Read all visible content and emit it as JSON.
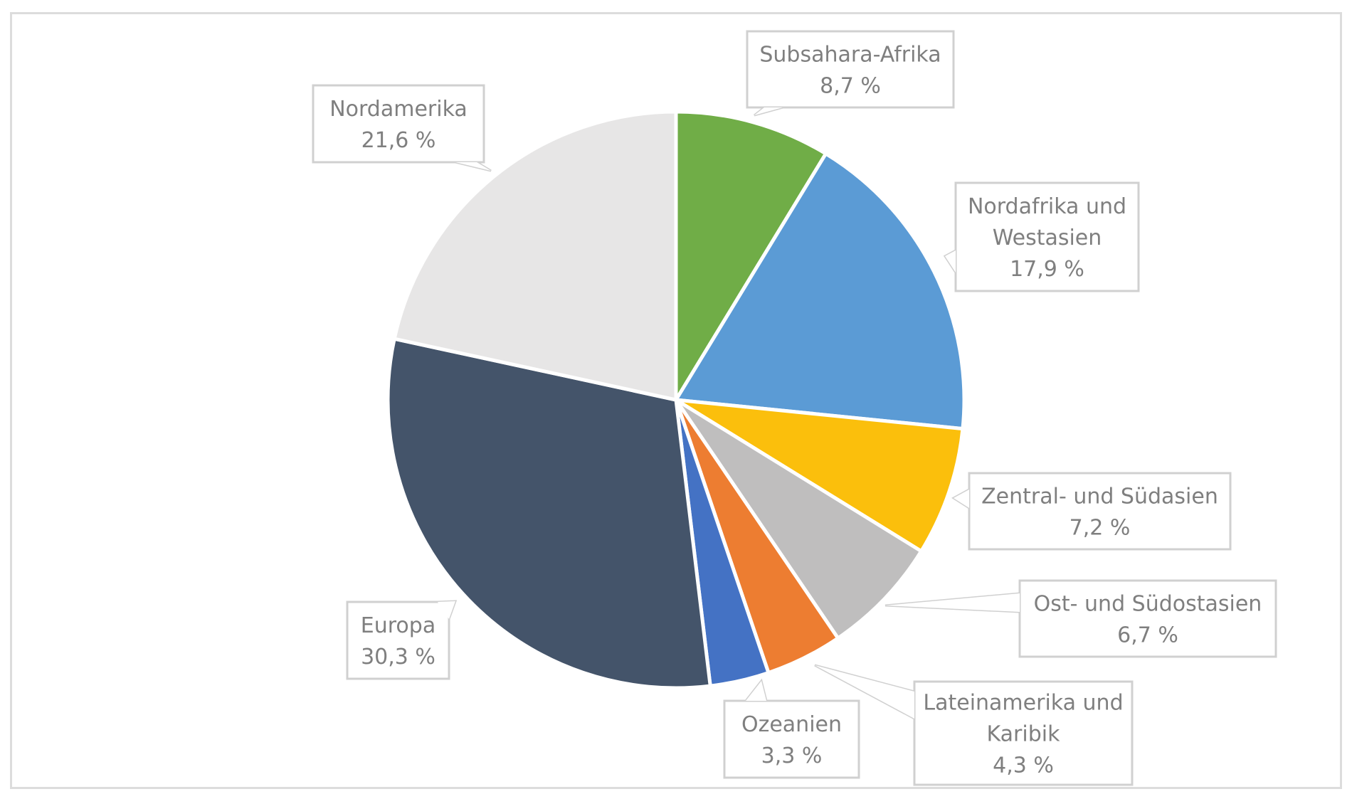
{
  "chart_data": {
    "type": "pie",
    "title": "",
    "start_angle_deg": 0,
    "direction": "clockwise",
    "slices": [
      {
        "label": "Subsahara-Afrika",
        "lines": [
          "Subsahara-Afrika"
        ],
        "value": 8.7,
        "value_label": "8,7 %",
        "color": "#70ad47"
      },
      {
        "label": "Nordafrika und Westasien",
        "lines": [
          "Nordafrika und",
          "Westasien"
        ],
        "value": 17.9,
        "value_label": "17,9 %",
        "color": "#5b9bd5"
      },
      {
        "label": "Zentral- und Südasien",
        "lines": [
          "Zentral- und Südasien"
        ],
        "value": 7.2,
        "value_label": "7,2 %",
        "color": "#fbbf0c"
      },
      {
        "label": "Ost- und Südostasien",
        "lines": [
          "Ost- und Südostasien"
        ],
        "value": 6.7,
        "value_label": "6,7 %",
        "color": "#bfbebe"
      },
      {
        "label": "Lateinamerika und Karibik",
        "lines": [
          "Lateinamerika und",
          "Karibik"
        ],
        "value": 4.3,
        "value_label": "4,3 %",
        "color": "#ed7d31"
      },
      {
        "label": "Ozeanien",
        "lines": [
          "Ozeanien"
        ],
        "value": 3.3,
        "value_label": "3,3 %",
        "color": "#4472c4"
      },
      {
        "label": "Europa",
        "lines": [
          "Europa"
        ],
        "value": 30.3,
        "value_label": "30,3 %",
        "color": "#44546a"
      },
      {
        "label": "Nordamerika",
        "lines": [
          "Nordamerika"
        ],
        "value": 21.6,
        "value_label": "21,6 %",
        "color": "#e7e6e6"
      }
    ],
    "legend": "none"
  }
}
